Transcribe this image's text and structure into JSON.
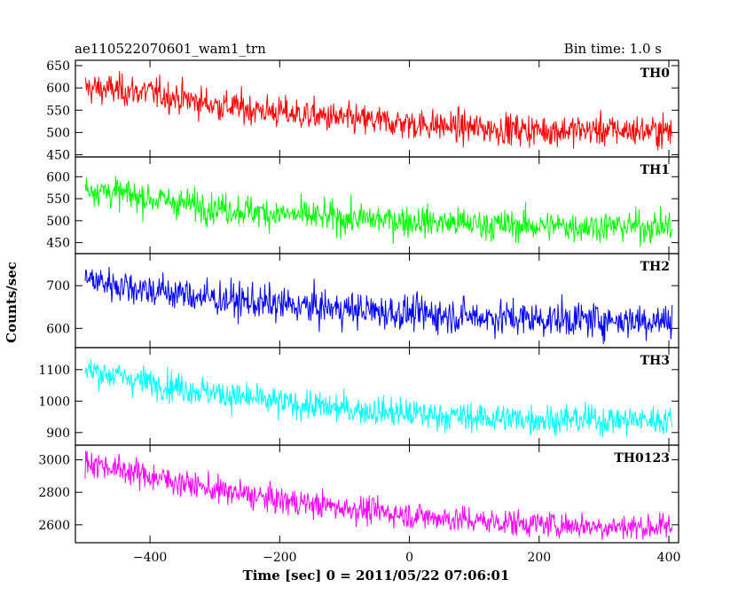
{
  "chart_data": {
    "type": "line",
    "title": "ae110522070601_wam1_trn",
    "bin_time_label": "Bin time: 1.0 s",
    "xlabel": "Time [sec] 0 = 2011/05/22 07:06:01",
    "ylabel": "Counts/sec",
    "xlim": [
      -515,
      415
    ],
    "xticks": [
      -400,
      -200,
      0,
      200,
      400
    ],
    "x_range": [
      -500,
      405
    ],
    "grid": false,
    "series": [
      {
        "name": "TH0",
        "color": "#ff0000",
        "ylim": [
          445,
          662
        ],
        "yticks": [
          450,
          500,
          550,
          600,
          650
        ],
        "trend": [
          [
            -500,
            600
          ],
          [
            -400,
            590
          ],
          [
            -300,
            562
          ],
          [
            -200,
            545
          ],
          [
            -100,
            530
          ],
          [
            0,
            520
          ],
          [
            100,
            510
          ],
          [
            200,
            505
          ],
          [
            300,
            505
          ],
          [
            405,
            503
          ]
        ],
        "noise": 30
      },
      {
        "name": "TH1",
        "color": "#00ff00",
        "ylim": [
          425,
          645
        ],
        "yticks": [
          450,
          500,
          550,
          600
        ],
        "trend": [
          [
            -500,
            575
          ],
          [
            -400,
            550
          ],
          [
            -300,
            530
          ],
          [
            -200,
            515
          ],
          [
            -100,
            505
          ],
          [
            0,
            500
          ],
          [
            100,
            492
          ],
          [
            200,
            488
          ],
          [
            300,
            487
          ],
          [
            405,
            487
          ]
        ],
        "noise": 30
      },
      {
        "name": "TH2",
        "color": "#0000ff",
        "ylim": [
          555,
          775
        ],
        "yticks": [
          600,
          700
        ],
        "trend": [
          [
            -500,
            715
          ],
          [
            -400,
            690
          ],
          [
            -300,
            670
          ],
          [
            -200,
            655
          ],
          [
            -100,
            645
          ],
          [
            0,
            635
          ],
          [
            100,
            628
          ],
          [
            200,
            622
          ],
          [
            300,
            620
          ],
          [
            405,
            618
          ]
        ],
        "noise": 35
      },
      {
        "name": "TH3",
        "color": "#00ffff",
        "ylim": [
          860,
          1170
        ],
        "yticks": [
          900,
          1000,
          1100
        ],
        "trend": [
          [
            -500,
            1100
          ],
          [
            -400,
            1060
          ],
          [
            -300,
            1025
          ],
          [
            -200,
            995
          ],
          [
            -100,
            975
          ],
          [
            0,
            960
          ],
          [
            100,
            948
          ],
          [
            200,
            943
          ],
          [
            300,
            940
          ],
          [
            405,
            940
          ]
        ],
        "noise": 40
      },
      {
        "name": "TH0123",
        "color": "#ff00ff",
        "ylim": [
          2490,
          3090
        ],
        "yticks": [
          2600,
          2800,
          3000
        ],
        "trend": [
          [
            -500,
            2990
          ],
          [
            -400,
            2900
          ],
          [
            -300,
            2815
          ],
          [
            -200,
            2750
          ],
          [
            -100,
            2705
          ],
          [
            0,
            2660
          ],
          [
            100,
            2625
          ],
          [
            200,
            2605
          ],
          [
            300,
            2590
          ],
          [
            405,
            2585
          ]
        ],
        "noise": 70
      }
    ]
  }
}
